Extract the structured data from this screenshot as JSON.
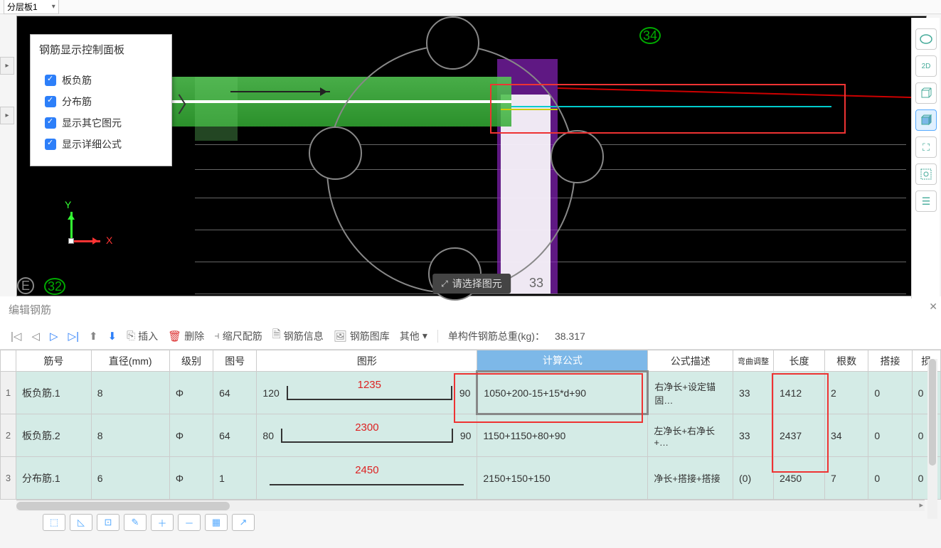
{
  "topbar": {
    "dropdown": "分层板1"
  },
  "controlPanel": {
    "title": "钢筋显示控制面板",
    "items": [
      "板负筋",
      "分布筋",
      "显示其它图元",
      "显示详细公式"
    ]
  },
  "viewport": {
    "axis": {
      "x": "X",
      "y": "Y"
    },
    "markers": {
      "E": "E",
      "m32": "32",
      "m33": "33",
      "m34": "34"
    },
    "prompt": "请选择图元",
    "colors": {
      "beam": "#4bb84b",
      "column": "#8822bb",
      "cyan": "#00cccc",
      "red_annot": "#ee3333",
      "axis_x": "#ff3333",
      "axis_y": "#33ff33"
    }
  },
  "editPanel": {
    "title": "编辑钢筋",
    "toolbar": {
      "insert": "插入",
      "delete": "删除",
      "scale": "缩尺配筋",
      "info": "钢筋信息",
      "library": "钢筋图库",
      "other": "其他",
      "totalLabel": "单构件钢筋总重(kg)：",
      "totalValue": "38.317"
    },
    "columns": [
      "筋号",
      "直径(mm)",
      "级别",
      "图号",
      "图形",
      "计算公式",
      "公式描述",
      "弯曲调整",
      "长度",
      "根数",
      "搭接",
      "损"
    ],
    "rows": [
      {
        "num": "1",
        "name": "板负筋.1",
        "dia": "8",
        "grade": "Φ",
        "code": "64",
        "shape": {
          "l": "120",
          "mid": "1235",
          "r": "90"
        },
        "formula": "1050+200-15+15*d+90",
        "desc": "右净长+设定锚固…",
        "adj": "33",
        "len": "1412",
        "cnt": "2",
        "lap": "0",
        "loss": "0"
      },
      {
        "num": "2",
        "name": "板负筋.2",
        "dia": "8",
        "grade": "Φ",
        "code": "64",
        "shape": {
          "l": "80",
          "mid": "2300",
          "r": "90"
        },
        "formula": "1150+1150+80+90",
        "desc": "左净长+右净长+…",
        "adj": "33",
        "len": "2437",
        "cnt": "34",
        "lap": "0",
        "loss": "0"
      },
      {
        "num": "3",
        "name": "分布筋.1",
        "dia": "6",
        "grade": "Φ",
        "code": "1",
        "shape": {
          "l": "",
          "mid": "2450",
          "r": ""
        },
        "formula": "2150+150+150",
        "desc": "净长+搭接+搭接",
        "adj": "(0)",
        "len": "2450",
        "cnt": "7",
        "lap": "0",
        "loss": "0"
      }
    ]
  }
}
